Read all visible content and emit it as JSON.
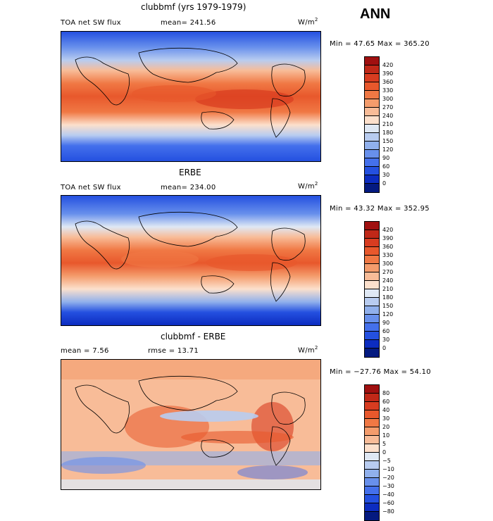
{
  "season": "ANN",
  "units_base": "W/m",
  "units_exp": "2",
  "chart_data": [
    {
      "type": "heatmap",
      "title": "clubbmf (yrs 1979-1979)",
      "subtitle_left": "TOA net SW flux",
      "subtitle_right": "mean= 241.56",
      "minmax": "Min =  47.65 Max = 365.20",
      "min": 47.65,
      "max": 365.2,
      "mean": 241.56,
      "colorbar_levels": [
        "420",
        "390",
        "360",
        "330",
        "300",
        "270",
        "240",
        "210",
        "180",
        "150",
        "120",
        "90",
        "60",
        "30",
        "0"
      ],
      "colors": [
        "#a01010",
        "#c02818",
        "#d83c20",
        "#e8582c",
        "#f07844",
        "#f49c6c",
        "#f8bc98",
        "#fce0cc",
        "#dfe8f4",
        "#b8ccf0",
        "#90b0ec",
        "#6890ec",
        "#4470ec",
        "#2450e0",
        "#0c2cc0",
        "#041a80"
      ]
    },
    {
      "type": "heatmap",
      "title": "ERBE",
      "subtitle_left": "TOA net SW flux",
      "subtitle_right": "mean= 234.00",
      "minmax": "Min =  43.32 Max = 352.95",
      "min": 43.32,
      "max": 352.95,
      "mean": 234.0,
      "colorbar_levels": [
        "420",
        "390",
        "360",
        "330",
        "300",
        "270",
        "240",
        "210",
        "180",
        "150",
        "120",
        "90",
        "60",
        "30",
        "0"
      ],
      "colors": [
        "#a01010",
        "#c02818",
        "#d83c20",
        "#e8582c",
        "#f07844",
        "#f49c6c",
        "#f8bc98",
        "#fce0cc",
        "#dfe8f4",
        "#b8ccf0",
        "#90b0ec",
        "#6890ec",
        "#4470ec",
        "#2450e0",
        "#0c2cc0",
        "#041a80"
      ]
    },
    {
      "type": "heatmap",
      "title": "clubbmf - ERBE",
      "subtitle_left": "mean =   7.56",
      "subtitle_right": "rmse =  13.71",
      "minmax": "Min = −27.76 Max =  54.10",
      "min": -27.76,
      "max": 54.1,
      "mean": 7.56,
      "rmse": 13.71,
      "colorbar_levels": [
        "80",
        "60",
        "40",
        "30",
        "20",
        "10",
        "5",
        "0",
        "−5",
        "−10",
        "−20",
        "−30",
        "−40",
        "−60",
        "−80"
      ],
      "colors": [
        "#a01010",
        "#c02818",
        "#d83c20",
        "#e8582c",
        "#f07844",
        "#f49c6c",
        "#f8bc98",
        "#fce0cc",
        "#dfe8f4",
        "#b8ccf0",
        "#90b0ec",
        "#6890ec",
        "#4470ec",
        "#2450e0",
        "#0c2cc0",
        "#041a80"
      ]
    }
  ]
}
